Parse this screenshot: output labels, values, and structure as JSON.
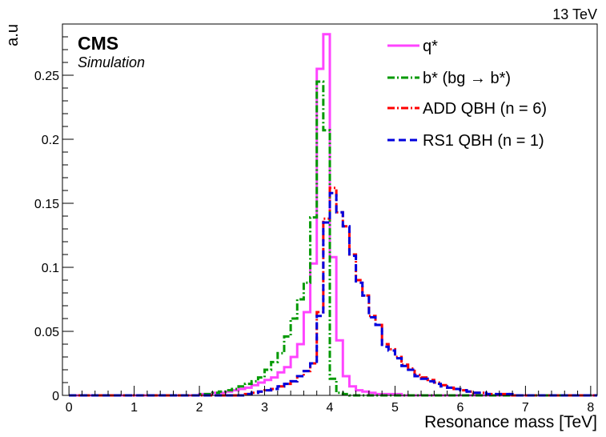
{
  "chart_data": {
    "type": "line",
    "energy_label": "13 TeV",
    "experiment": "CMS",
    "experiment_sub": "Simulation",
    "xlabel": "Resonance mass [TeV]",
    "ylabel": "a.u",
    "xlim": [
      -0.1,
      8.1
    ],
    "ylim": [
      0,
      0.29
    ],
    "xticks": [
      "0",
      "1",
      "2",
      "3",
      "4",
      "5",
      "6",
      "7",
      "8"
    ],
    "yticks": [
      "0",
      "0.05",
      "0.1",
      "0.15",
      "0.2",
      "0.25"
    ],
    "ytick_values": [
      0,
      0.05,
      0.1,
      0.15,
      0.2,
      0.25
    ],
    "legend_position": "top-right",
    "bin_width": 0.1,
    "series": [
      {
        "name": "q*",
        "color": "#ff44ff",
        "style": "solid",
        "values": [
          0,
          0,
          0,
          0,
          0,
          0,
          0,
          0,
          0,
          0,
          0,
          0,
          0,
          0,
          0,
          0,
          0,
          0,
          0,
          0,
          0.001,
          0.001,
          0.002,
          0.002,
          0.003,
          0.004,
          0.005,
          0.006,
          0.008,
          0.01,
          0.012,
          0.014,
          0.018,
          0.022,
          0.03,
          0.04,
          0.065,
          0.103,
          0.255,
          0.282,
          0.108,
          0.043,
          0.015,
          0.007,
          0.004,
          0.003,
          0.002,
          0.001,
          0.001,
          0.001,
          0.001,
          0,
          0,
          0,
          0,
          0,
          0,
          0,
          0,
          0,
          0,
          0,
          0,
          0,
          0,
          0,
          0,
          0,
          0,
          0,
          0,
          0,
          0,
          0,
          0,
          0,
          0,
          0,
          0,
          0,
          0
        ]
      },
      {
        "name": "b* (bg → b*)",
        "color": "#009900",
        "style": "dashdot",
        "values": [
          0,
          0,
          0,
          0,
          0,
          0,
          0,
          0,
          0,
          0,
          0,
          0,
          0,
          0,
          0,
          0,
          0,
          0,
          0,
          0,
          0.001,
          0.001,
          0.002,
          0.003,
          0.004,
          0.005,
          0.007,
          0.009,
          0.011,
          0.014,
          0.02,
          0.026,
          0.033,
          0.046,
          0.06,
          0.075,
          0.088,
          0.139,
          0.245,
          0.207,
          0.013,
          0.002,
          0.001,
          0,
          0,
          0,
          0,
          0,
          0,
          0,
          0,
          0,
          0,
          0,
          0,
          0,
          0,
          0,
          0,
          0,
          0,
          0,
          0,
          0,
          0,
          0,
          0,
          0,
          0,
          0,
          0,
          0,
          0,
          0,
          0,
          0,
          0,
          0,
          0,
          0,
          0
        ]
      },
      {
        "name": "ADD QBH (n = 6)",
        "color": "#ff0000",
        "style": "dashdot",
        "values": [
          0,
          0,
          0,
          0,
          0,
          0,
          0,
          0,
          0,
          0,
          0,
          0,
          0,
          0,
          0,
          0,
          0,
          0,
          0,
          0,
          0,
          0,
          0,
          0,
          0,
          0,
          0,
          0.001,
          0.002,
          0.003,
          0.004,
          0.005,
          0.007,
          0.009,
          0.011,
          0.015,
          0.019,
          0.025,
          0.065,
          0.138,
          0.162,
          0.143,
          0.132,
          0.11,
          0.09,
          0.078,
          0.062,
          0.055,
          0.04,
          0.036,
          0.03,
          0.024,
          0.021,
          0.016,
          0.014,
          0.012,
          0.01,
          0.008,
          0.006,
          0.005,
          0.004,
          0.003,
          0.002,
          0.002,
          0.001,
          0.001,
          0.001,
          0.001,
          0,
          0,
          0,
          0,
          0,
          0,
          0,
          0,
          0,
          0,
          0,
          0,
          0
        ]
      },
      {
        "name": "RS1 QBH (n = 1)",
        "color": "#0000dd",
        "style": "dashed",
        "values": [
          0,
          0,
          0,
          0,
          0,
          0,
          0,
          0,
          0,
          0,
          0,
          0,
          0,
          0,
          0,
          0,
          0,
          0,
          0,
          0,
          0,
          0,
          0,
          0,
          0,
          0,
          0,
          0.001,
          0.002,
          0.003,
          0.004,
          0.005,
          0.007,
          0.009,
          0.011,
          0.015,
          0.019,
          0.025,
          0.062,
          0.135,
          0.158,
          0.143,
          0.132,
          0.109,
          0.088,
          0.078,
          0.061,
          0.055,
          0.038,
          0.035,
          0.029,
          0.023,
          0.02,
          0.015,
          0.013,
          0.011,
          0.009,
          0.007,
          0.006,
          0.005,
          0.004,
          0.003,
          0.002,
          0.002,
          0.001,
          0.001,
          0.001,
          0.001,
          0,
          0,
          0,
          0,
          0,
          0,
          0,
          0,
          0,
          0,
          0,
          0,
          0
        ]
      }
    ]
  }
}
